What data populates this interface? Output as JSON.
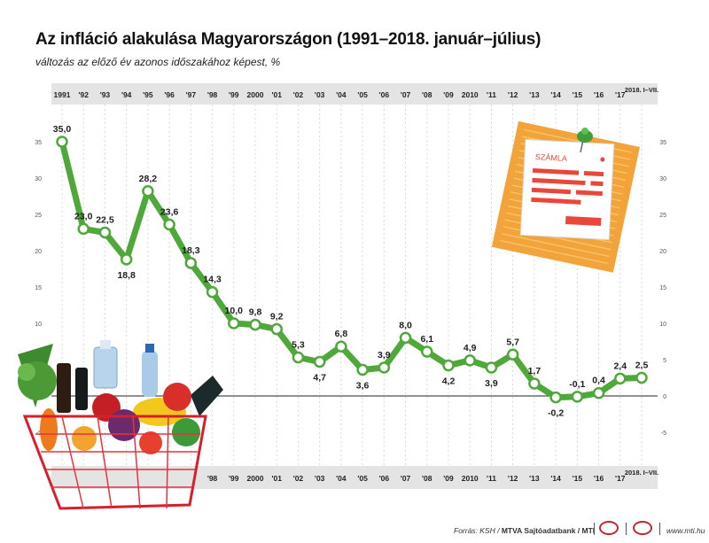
{
  "header": {
    "title": "Az infláció alakulása Magyarországon (1991–2018. január–július)",
    "subtitle": "változás az előző év azonos időszakához képest, %"
  },
  "footer": {
    "source_label": "Forrás: KSH / ",
    "source_agency": "MTVA Sajtóadatbank / MTI",
    "site": "www.mti.hu"
  },
  "invoice": {
    "label": "SZÁMLA"
  },
  "colors": {
    "line": "#5cb846",
    "line_stroke": "#4fa83a",
    "axis_band": "#e2e2e2",
    "invoice": "#f2a43a",
    "invoice_bars": "#e8473a",
    "logo": "#c0262d"
  },
  "chart_data": {
    "type": "line",
    "title": "Az infláció alakulása Magyarországon (1991–2018. január–július)",
    "subtitle": "változás az előző év azonos időszakához képest, %",
    "xlabel": "",
    "ylabel": "",
    "ylim": [
      -5,
      35
    ],
    "yticks": [
      35,
      30,
      25,
      20,
      15,
      10,
      5,
      0,
      -5
    ],
    "grid": false,
    "categories": [
      "1991",
      "'92",
      "'93",
      "'94",
      "'95",
      "'96",
      "'97",
      "'98",
      "'99",
      "2000",
      "'01",
      "'02",
      "'03",
      "'04",
      "'05",
      "'06",
      "'07",
      "'08",
      "'09",
      "2010",
      "'11",
      "'12",
      "'13",
      "'14",
      "'15",
      "'16",
      "'17",
      "2018. I–VII."
    ],
    "series": [
      {
        "values": [
          35.0,
          23.0,
          22.5,
          18.8,
          28.2,
          23.6,
          18.3,
          14.3,
          10.0,
          9.8,
          9.2,
          5.3,
          4.7,
          6.8,
          3.6,
          3.9,
          8.0,
          6.1,
          4.2,
          4.9,
          3.9,
          5.7,
          1.7,
          -0.2,
          -0.1,
          0.4,
          2.4,
          2.5
        ],
        "labels": [
          "35,0",
          "23,0",
          "22,5",
          "18,8",
          "28,2",
          "23,6",
          "18,3",
          "14,3",
          "10,0",
          "9,8",
          "9,2",
          "5,3",
          "4,7",
          "6,8",
          "3,6",
          "3,9",
          "8,0",
          "6,1",
          "4,2",
          "4,9",
          "3,9",
          "5,7",
          "1,7",
          "-0,2",
          "-0,1",
          "0,4",
          "2,4",
          "2,5"
        ]
      }
    ]
  }
}
